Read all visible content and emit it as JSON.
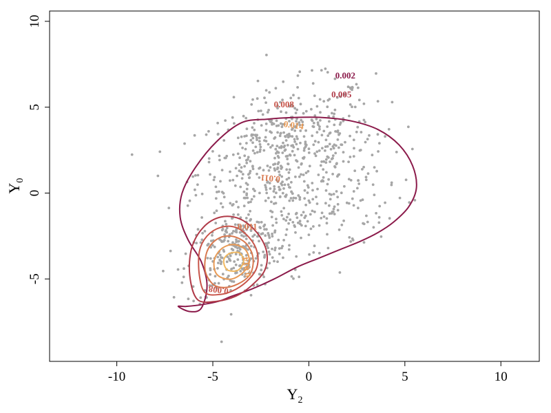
{
  "chart_data": {
    "type": "scatter",
    "title": "",
    "xlabel": {
      "main": "Y",
      "sub": "2"
    },
    "ylabel": {
      "main": "Y",
      "sub": "0"
    },
    "xlim": [
      -13.5,
      12
    ],
    "ylim": [
      -9.8,
      10.6
    ],
    "xticks": [
      -10,
      -5,
      0,
      5,
      10
    ],
    "yticks": [
      -5,
      0,
      5,
      10
    ],
    "xtick_labels": [
      "-10",
      "-5",
      "0",
      "5",
      "10"
    ],
    "ytick_labels": [
      "-5",
      "0",
      "5",
      "10"
    ],
    "grid": false,
    "legend": "none",
    "point_color": "#a6a6a6",
    "clusters": [
      {
        "center": [
          -1.2,
          2.5
        ],
        "std": [
          2.3,
          1.9
        ],
        "rho": 0.35,
        "n": 520
      },
      {
        "center": [
          -3.8,
          -3.5
        ],
        "std": [
          1.3,
          1.3
        ],
        "rho": 0.35,
        "n": 260
      },
      {
        "center": [
          0.5,
          -1.0
        ],
        "std": [
          2.2,
          1.8
        ],
        "rho": 0.5,
        "n": 180
      }
    ],
    "contour_levels": [
      {
        "level": 0.002,
        "label": "0.002",
        "color": "#8b1a4a"
      },
      {
        "level": 0.005,
        "label": "0.005",
        "color": "#b03a48"
      },
      {
        "level": 0.008,
        "label": "0.008",
        "color": "#c8554a"
      },
      {
        "level": 0.011,
        "label": "0.011",
        "color": "#d8784e"
      },
      {
        "level": 0.014,
        "label": "0.014",
        "color": "#e89a55"
      },
      {
        "level": 0.017,
        "label": "",
        "color": "#f0b860"
      }
    ],
    "contours": [
      {
        "level": "0.002",
        "closed": true,
        "x": [
          -6.8,
          -6.2,
          -5.6,
          -5.3,
          -5.6,
          -6.3,
          -6.7,
          -6.6,
          -5.9,
          -4.8,
          -3.5,
          -2.2,
          -0.8,
          0.7,
          2.2,
          3.6,
          4.7,
          5.4,
          5.6,
          5.2,
          4.4,
          3.6,
          2.7,
          1.6,
          0.5,
          -0.6,
          -1.8,
          -3.0,
          -4.0,
          -4.7,
          -5.6,
          -6.4,
          -6.8
        ],
        "y": [
          -6.6,
          -6.9,
          -6.7,
          -5.4,
          -4.0,
          -2.7,
          -1.4,
          0.0,
          1.5,
          3.0,
          4.1,
          4.3,
          4.4,
          4.4,
          4.2,
          3.7,
          2.8,
          1.6,
          0.3,
          -0.8,
          -1.7,
          -2.3,
          -2.8,
          -3.3,
          -3.8,
          -4.3,
          -5.0,
          -5.6,
          -6.0,
          -6.3,
          -6.5,
          -6.6,
          -6.6
        ]
      },
      {
        "level": "0.005",
        "closed": true,
        "x": [
          -5.8,
          -4.8,
          -3.8,
          -3.0,
          -2.3,
          -2.2,
          -2.7,
          -3.6,
          -4.6,
          -5.5,
          -6.1,
          -6.2,
          -5.8
        ],
        "y": [
          -6.2,
          -6.3,
          -6.0,
          -5.4,
          -4.5,
          -3.4,
          -2.3,
          -1.5,
          -1.4,
          -2.0,
          -3.2,
          -4.8,
          -6.2
        ]
      },
      {
        "level": "0.008",
        "closed": true,
        "x": [
          -5.4,
          -4.6,
          -3.8,
          -3.1,
          -2.7,
          -2.7,
          -3.1,
          -3.8,
          -4.6,
          -5.3,
          -5.7,
          -5.7,
          -5.4
        ],
        "y": [
          -5.8,
          -5.9,
          -5.6,
          -5.0,
          -4.3,
          -3.4,
          -2.6,
          -2.0,
          -2.0,
          -2.5,
          -3.4,
          -4.8,
          -5.8
        ]
      },
      {
        "level": "0.011",
        "closed": true,
        "x": [
          -5.0,
          -4.4,
          -3.7,
          -3.1,
          -2.9,
          -3.0,
          -3.4,
          -4.1,
          -4.8,
          -5.3,
          -5.4,
          -5.0
        ],
        "y": [
          -5.3,
          -5.5,
          -5.3,
          -4.8,
          -4.1,
          -3.4,
          -2.8,
          -2.5,
          -2.7,
          -3.4,
          -4.5,
          -5.3
        ]
      },
      {
        "level": "0.014",
        "closed": true,
        "x": [
          -4.6,
          -4.0,
          -3.4,
          -3.1,
          -3.3,
          -3.9,
          -4.5,
          -4.9,
          -4.9,
          -4.6
        ],
        "y": [
          -4.9,
          -5.0,
          -4.6,
          -4.0,
          -3.3,
          -3.0,
          -3.2,
          -3.8,
          -4.5,
          -4.9
        ]
      },
      {
        "level": "0.017",
        "closed": true,
        "x": [
          -4.2,
          -3.7,
          -3.4,
          -3.6,
          -4.1,
          -4.4,
          -4.4,
          -4.2
        ],
        "y": [
          -4.5,
          -4.5,
          -4.0,
          -3.5,
          -3.5,
          -3.8,
          -4.2,
          -4.5
        ]
      }
    ],
    "contour_labels": [
      {
        "text": "0.002",
        "x": 1.9,
        "y": 6.8,
        "color": "#8b1a4a"
      },
      {
        "text": "0.005",
        "x": 1.7,
        "y": 5.7,
        "color": "#b03a48"
      },
      {
        "text": "0.008",
        "x": -1.3,
        "y": 5.1,
        "color": "#c8554a"
      },
      {
        "text": "0.014",
        "x": -0.8,
        "y": 3.9,
        "color": "#e89a55",
        "rotate": 8
      },
      {
        "text": "0.011",
        "x": -2.0,
        "y": 0.9,
        "color": "#d8784e",
        "rotate": 185
      },
      {
        "text": "0.011",
        "x": -3.2,
        "y": -2.0,
        "color": "#d8784e"
      },
      {
        "text": "0.014",
        "x": -3.2,
        "y": -4.3,
        "color": "#e89a55",
        "rotate": 260
      },
      {
        "text": "0.008",
        "x": -4.7,
        "y": -5.6,
        "color": "#c8554a",
        "rotate": 188
      }
    ]
  }
}
